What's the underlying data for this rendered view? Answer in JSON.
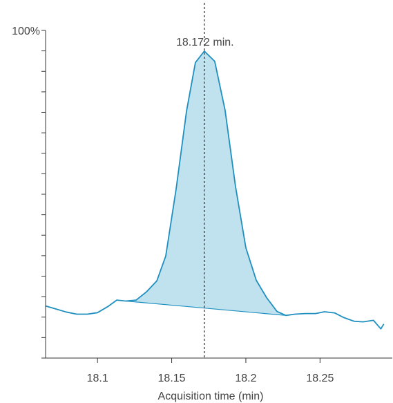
{
  "chart_data": {
    "type": "line",
    "xlabel": "Acquisition time (min)",
    "ylabel": "",
    "y_top_label": "100%",
    "xlim": [
      18.065,
      18.295
    ],
    "ylim": [
      0,
      100
    ],
    "x_ticks": [
      18.1,
      18.15,
      18.2,
      18.25
    ],
    "x_tick_labels": [
      "18.1",
      "18.15",
      "18.2",
      "18.25"
    ],
    "y_minor_tick_count": 16,
    "grid": false,
    "colors": {
      "line": "#1e8fbf",
      "fill": "#bfe2ee",
      "baseline": "#1e8fbf",
      "marker": "#444444"
    },
    "series": [
      {
        "x": [
          18.065,
          18.072,
          18.079,
          18.086,
          18.093,
          18.1,
          18.107,
          18.113,
          18.119,
          18.126,
          18.133,
          18.14,
          18.146,
          18.153,
          18.16,
          18.166,
          18.172,
          18.179,
          18.186,
          18.193,
          18.2,
          18.207,
          18.214,
          18.221,
          18.227,
          18.233,
          18.24,
          18.247,
          18.253,
          18.26,
          18.266,
          18.273,
          18.279,
          18.286,
          18.291,
          18.293
        ],
        "y": [
          16.8,
          15.8,
          14.8,
          14.1,
          14.1,
          14.6,
          16.6,
          18.7,
          18.4,
          18.7,
          21.4,
          25.0,
          33.1,
          55.0,
          80.4,
          96.3,
          100.0,
          96.7,
          80.7,
          55.9,
          35.8,
          25.2,
          19.5,
          15.0,
          13.7,
          14.1,
          14.3,
          14.3,
          14.9,
          14.5,
          13.0,
          11.8,
          11.6,
          12.1,
          9.3,
          10.9
        ]
      }
    ],
    "integration": {
      "start_x": 18.119,
      "end_x": 18.227,
      "start_y": 18.4,
      "end_y": 13.7
    },
    "peak": {
      "x": 18.172,
      "label": "18.172 min."
    }
  }
}
